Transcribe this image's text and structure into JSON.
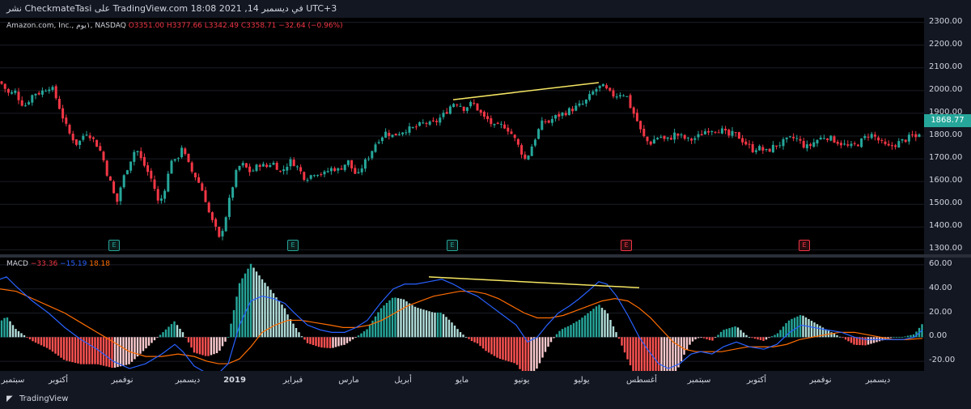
{
  "header": {
    "publish_line": "نشر CheckmateTasi على TradingView.com في ديسمبر 14, 2021 18:08 UTC+3"
  },
  "legend": {
    "symbol": "Amazon.com, Inc., ١يوم, NASDAQ",
    "open": "O3351.00",
    "high": "H3377.66",
    "low": "L3342.49",
    "close": "C3358.71",
    "change": "−32.64 (−0.96%)"
  },
  "macd_legend": {
    "name": "MACD",
    "hist": "−33.36",
    "macd": "−15.19",
    "signal": "18.18"
  },
  "price_axis": [
    "2300.00",
    "2200.00",
    "2100.00",
    "2000.00",
    "1900.00",
    "1800.00",
    "1700.00",
    "1600.00",
    "1500.00",
    "1400.00",
    "1300.00"
  ],
  "last_price": "1868.77",
  "macd_axis": [
    "60.00",
    "40.00",
    "20.00",
    "0.00",
    "-20.00"
  ],
  "time_axis": [
    {
      "label": "سبتمبر",
      "bold": false
    },
    {
      "label": "أكتوبر",
      "bold": false
    },
    {
      "label": "نوفمبر",
      "bold": false
    },
    {
      "label": "ديسمبر",
      "bold": false
    },
    {
      "label": "2019",
      "bold": true
    },
    {
      "label": "فبراير",
      "bold": false
    },
    {
      "label": "مارس",
      "bold": false
    },
    {
      "label": "أبريل",
      "bold": false
    },
    {
      "label": "مايو",
      "bold": false
    },
    {
      "label": "يونيو",
      "bold": false
    },
    {
      "label": "يوليو",
      "bold": false
    },
    {
      "label": "أغسطس",
      "bold": false
    },
    {
      "label": "سبتمبر",
      "bold": false
    },
    {
      "label": "أكتوبر",
      "bold": false
    },
    {
      "label": "نوفمبر",
      "bold": false
    },
    {
      "label": "ديسمبر",
      "bold": false
    }
  ],
  "earnings_badges": [
    {
      "label": "E",
      "type": "up"
    },
    {
      "label": "E",
      "type": "up"
    },
    {
      "label": "E",
      "type": "up"
    },
    {
      "label": "E",
      "type": "down"
    },
    {
      "label": "E",
      "type": "down"
    }
  ],
  "footer": {
    "brand": "TradingView"
  },
  "colors": {
    "up": "#26a69a",
    "down": "#f23645",
    "macd": "#2962ff",
    "signal": "#ff6d00",
    "trendline": "#f5e663"
  },
  "chart_data": {
    "type": "candlestick",
    "price_ylim": [
      1280,
      2320
    ],
    "macd_ylim": [
      -28,
      66
    ],
    "price_path": [
      [
        0,
        2040
      ],
      [
        6,
        2010
      ],
      [
        12,
        1980
      ],
      [
        18,
        2000
      ],
      [
        24,
        1960
      ],
      [
        30,
        1930
      ],
      [
        36,
        1960
      ],
      [
        42,
        1990
      ],
      [
        48,
        1990
      ],
      [
        54,
        2000
      ],
      [
        60,
        2020
      ],
      [
        66,
        2000
      ],
      [
        72,
        1940
      ],
      [
        78,
        1880
      ],
      [
        84,
        1820
      ],
      [
        90,
        1790
      ],
      [
        96,
        1760
      ],
      [
        102,
        1800
      ],
      [
        108,
        1820
      ],
      [
        114,
        1790
      ],
      [
        120,
        1760
      ],
      [
        126,
        1720
      ],
      [
        132,
        1640
      ],
      [
        138,
        1580
      ],
      [
        144,
        1500
      ],
      [
        150,
        1590
      ],
      [
        156,
        1650
      ],
      [
        162,
        1700
      ],
      [
        168,
        1750
      ],
      [
        174,
        1700
      ],
      [
        180,
        1660
      ],
      [
        186,
        1620
      ],
      [
        192,
        1560
      ],
      [
        196,
        1500
      ],
      [
        200,
        1530
      ],
      [
        206,
        1600
      ],
      [
        212,
        1700
      ],
      [
        218,
        1680
      ],
      [
        224,
        1760
      ],
      [
        230,
        1700
      ],
      [
        236,
        1650
      ],
      [
        242,
        1620
      ],
      [
        248,
        1580
      ],
      [
        254,
        1520
      ],
      [
        260,
        1440
      ],
      [
        266,
        1400
      ],
      [
        270,
        1340
      ],
      [
        274,
        1380
      ],
      [
        280,
        1460
      ],
      [
        286,
        1560
      ],
      [
        292,
        1640
      ],
      [
        298,
        1680
      ],
      [
        304,
        1660
      ],
      [
        310,
        1640
      ],
      [
        316,
        1660
      ],
      [
        322,
        1680
      ],
      [
        328,
        1660
      ],
      [
        334,
        1680
      ],
      [
        340,
        1680
      ],
      [
        346,
        1640
      ],
      [
        352,
        1660
      ],
      [
        358,
        1690
      ],
      [
        364,
        1680
      ],
      [
        370,
        1650
      ],
      [
        376,
        1620
      ],
      [
        382,
        1620
      ],
      [
        388,
        1640
      ],
      [
        394,
        1640
      ],
      [
        400,
        1630
      ],
      [
        406,
        1650
      ],
      [
        412,
        1660
      ],
      [
        418,
        1650
      ],
      [
        424,
        1670
      ],
      [
        430,
        1690
      ],
      [
        436,
        1650
      ],
      [
        442,
        1620
      ],
      [
        448,
        1670
      ],
      [
        454,
        1700
      ],
      [
        460,
        1740
      ],
      [
        466,
        1780
      ],
      [
        472,
        1800
      ],
      [
        478,
        1820
      ],
      [
        484,
        1800
      ],
      [
        490,
        1810
      ],
      [
        496,
        1820
      ],
      [
        502,
        1830
      ],
      [
        508,
        1830
      ],
      [
        514,
        1840
      ],
      [
        520,
        1850
      ],
      [
        526,
        1860
      ],
      [
        532,
        1850
      ],
      [
        538,
        1860
      ],
      [
        544,
        1880
      ],
      [
        550,
        1900
      ],
      [
        556,
        1930
      ],
      [
        562,
        1950
      ],
      [
        568,
        1940
      ],
      [
        574,
        1920
      ],
      [
        580,
        1940
      ],
      [
        586,
        1940
      ],
      [
        592,
        1910
      ],
      [
        598,
        1880
      ],
      [
        604,
        1870
      ],
      [
        610,
        1840
      ],
      [
        616,
        1840
      ],
      [
        622,
        1850
      ],
      [
        628,
        1830
      ],
      [
        634,
        1800
      ],
      [
        640,
        1760
      ],
      [
        646,
        1720
      ],
      [
        650,
        1690
      ],
      [
        654,
        1730
      ],
      [
        660,
        1780
      ],
      [
        666,
        1830
      ],
      [
        672,
        1870
      ],
      [
        678,
        1860
      ],
      [
        684,
        1880
      ],
      [
        690,
        1890
      ],
      [
        696,
        1900
      ],
      [
        702,
        1910
      ],
      [
        708,
        1920
      ],
      [
        714,
        1930
      ],
      [
        720,
        1940
      ],
      [
        726,
        1960
      ],
      [
        732,
        1990
      ],
      [
        738,
        2010
      ],
      [
        744,
        2020
      ],
      [
        750,
        2000
      ],
      [
        756,
        1980
      ],
      [
        762,
        1980
      ],
      [
        768,
        1990
      ],
      [
        774,
        1980
      ],
      [
        780,
        1920
      ],
      [
        786,
        1880
      ],
      [
        792,
        1820
      ],
      [
        798,
        1780
      ],
      [
        804,
        1770
      ],
      [
        810,
        1790
      ],
      [
        816,
        1800
      ],
      [
        822,
        1780
      ],
      [
        828,
        1790
      ],
      [
        834,
        1810
      ],
      [
        840,
        1800
      ],
      [
        846,
        1790
      ],
      [
        852,
        1780
      ],
      [
        858,
        1790
      ],
      [
        864,
        1800
      ],
      [
        870,
        1820
      ],
      [
        876,
        1830
      ],
      [
        882,
        1830
      ],
      [
        888,
        1830
      ],
      [
        894,
        1820
      ],
      [
        900,
        1800
      ],
      [
        906,
        1810
      ],
      [
        912,
        1800
      ],
      [
        918,
        1780
      ],
      [
        924,
        1760
      ],
      [
        930,
        1740
      ],
      [
        936,
        1750
      ],
      [
        942,
        1740
      ],
      [
        948,
        1730
      ],
      [
        954,
        1750
      ],
      [
        960,
        1760
      ],
      [
        966,
        1770
      ],
      [
        972,
        1780
      ],
      [
        978,
        1790
      ],
      [
        984,
        1790
      ],
      [
        990,
        1770
      ],
      [
        996,
        1750
      ],
      [
        1002,
        1760
      ],
      [
        1008,
        1780
      ],
      [
        1014,
        1790
      ],
      [
        1020,
        1800
      ],
      [
        1026,
        1790
      ],
      [
        1032,
        1780
      ],
      [
        1038,
        1770
      ],
      [
        1044,
        1760
      ],
      [
        1050,
        1750
      ],
      [
        1056,
        1760
      ],
      [
        1062,
        1770
      ],
      [
        1068,
        1790
      ],
      [
        1074,
        1810
      ],
      [
        1080,
        1800
      ],
      [
        1086,
        1780
      ],
      [
        1092,
        1760
      ],
      [
        1098,
        1750
      ],
      [
        1104,
        1760
      ],
      [
        1110,
        1770
      ],
      [
        1116,
        1780
      ],
      [
        1122,
        1790
      ],
      [
        1128,
        1800
      ],
      [
        1134,
        1790
      ],
      [
        1140,
        1868
      ]
    ],
    "macd_path": [
      [
        0,
        48
      ],
      [
        8,
        50
      ],
      [
        20,
        42
      ],
      [
        40,
        30
      ],
      [
        60,
        20
      ],
      [
        80,
        8
      ],
      [
        100,
        -2
      ],
      [
        120,
        -10
      ],
      [
        140,
        -20
      ],
      [
        160,
        -26
      ],
      [
        180,
        -22
      ],
      [
        200,
        -14
      ],
      [
        216,
        -6
      ],
      [
        226,
        -12
      ],
      [
        240,
        -24
      ],
      [
        256,
        -30
      ],
      [
        270,
        -30
      ],
      [
        282,
        -22
      ],
      [
        296,
        10
      ],
      [
        310,
        30
      ],
      [
        324,
        34
      ],
      [
        338,
        32
      ],
      [
        352,
        28
      ],
      [
        364,
        20
      ],
      [
        380,
        10
      ],
      [
        396,
        6
      ],
      [
        410,
        4
      ],
      [
        426,
        4
      ],
      [
        440,
        8
      ],
      [
        454,
        14
      ],
      [
        470,
        28
      ],
      [
        486,
        40
      ],
      [
        500,
        44
      ],
      [
        514,
        44
      ],
      [
        530,
        46
      ],
      [
        546,
        48
      ],
      [
        560,
        44
      ],
      [
        576,
        38
      ],
      [
        590,
        34
      ],
      [
        606,
        26
      ],
      [
        622,
        18
      ],
      [
        638,
        10
      ],
      [
        652,
        -4
      ],
      [
        664,
        0
      ],
      [
        676,
        10
      ],
      [
        690,
        20
      ],
      [
        704,
        26
      ],
      [
        716,
        32
      ],
      [
        730,
        40
      ],
      [
        740,
        46
      ],
      [
        750,
        44
      ],
      [
        762,
        34
      ],
      [
        776,
        18
      ],
      [
        790,
        0
      ],
      [
        800,
        -10
      ],
      [
        814,
        -22
      ],
      [
        826,
        -26
      ],
      [
        840,
        -22
      ],
      [
        854,
        -14
      ],
      [
        866,
        -12
      ],
      [
        880,
        -14
      ],
      [
        894,
        -8
      ],
      [
        910,
        -4
      ],
      [
        926,
        -8
      ],
      [
        944,
        -10
      ],
      [
        960,
        -6
      ],
      [
        976,
        4
      ],
      [
        990,
        10
      ],
      [
        1006,
        8
      ],
      [
        1022,
        6
      ],
      [
        1040,
        4
      ],
      [
        1056,
        0
      ],
      [
        1070,
        -2
      ],
      [
        1086,
        -2
      ],
      [
        1100,
        -2
      ],
      [
        1116,
        -2
      ],
      [
        1130,
        0
      ],
      [
        1140,
        6
      ]
    ],
    "signal_path": [
      [
        0,
        40
      ],
      [
        20,
        38
      ],
      [
        40,
        32
      ],
      [
        60,
        26
      ],
      [
        80,
        20
      ],
      [
        100,
        12
      ],
      [
        120,
        4
      ],
      [
        140,
        -4
      ],
      [
        160,
        -12
      ],
      [
        180,
        -16
      ],
      [
        200,
        -16
      ],
      [
        220,
        -14
      ],
      [
        240,
        -16
      ],
      [
        256,
        -20
      ],
      [
        270,
        -22
      ],
      [
        282,
        -22
      ],
      [
        296,
        -18
      ],
      [
        310,
        -8
      ],
      [
        324,
        4
      ],
      [
        340,
        10
      ],
      [
        356,
        14
      ],
      [
        372,
        14
      ],
      [
        390,
        12
      ],
      [
        408,
        10
      ],
      [
        424,
        8
      ],
      [
        440,
        8
      ],
      [
        456,
        10
      ],
      [
        472,
        14
      ],
      [
        488,
        20
      ],
      [
        504,
        26
      ],
      [
        520,
        30
      ],
      [
        536,
        34
      ],
      [
        552,
        36
      ],
      [
        568,
        38
      ],
      [
        584,
        38
      ],
      [
        600,
        36
      ],
      [
        616,
        32
      ],
      [
        632,
        26
      ],
      [
        648,
        20
      ],
      [
        664,
        16
      ],
      [
        680,
        16
      ],
      [
        696,
        18
      ],
      [
        712,
        22
      ],
      [
        728,
        26
      ],
      [
        744,
        30
      ],
      [
        760,
        32
      ],
      [
        776,
        30
      ],
      [
        790,
        24
      ],
      [
        804,
        16
      ],
      [
        818,
        6
      ],
      [
        832,
        -4
      ],
      [
        846,
        -10
      ],
      [
        860,
        -12
      ],
      [
        876,
        -12
      ],
      [
        892,
        -12
      ],
      [
        908,
        -10
      ],
      [
        924,
        -8
      ],
      [
        940,
        -8
      ],
      [
        956,
        -8
      ],
      [
        972,
        -6
      ],
      [
        988,
        -2
      ],
      [
        1004,
        0
      ],
      [
        1020,
        2
      ],
      [
        1038,
        4
      ],
      [
        1056,
        4
      ],
      [
        1072,
        2
      ],
      [
        1088,
        0
      ],
      [
        1104,
        -2
      ],
      [
        1120,
        -2
      ],
      [
        1140,
        -1
      ]
    ]
  }
}
